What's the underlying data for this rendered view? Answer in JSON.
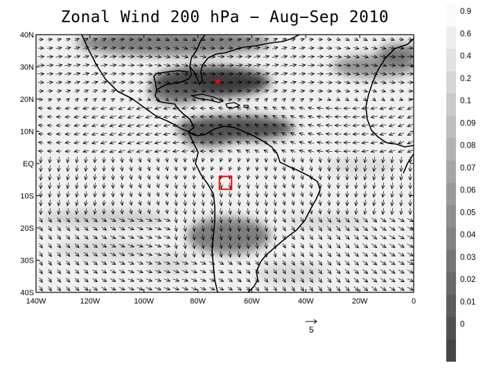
{
  "title": "Zonal Wind 200 hPa − Aug−Sep 2010",
  "map": {
    "lat_ticks": [
      "40N",
      "30N",
      "20N",
      "10N",
      "EQ",
      "10S",
      "20S",
      "30S",
      "40S"
    ],
    "lon_ticks": [
      "140W",
      "120W",
      "100W",
      "80W",
      "60W",
      "40W",
      "20W",
      "0"
    ],
    "lon_range": [
      -140,
      0
    ],
    "lat_range": [
      -40,
      40
    ],
    "star_marker": {
      "lon": -72.5,
      "lat": 25.5,
      "color": "#ff0000"
    },
    "box_marker": {
      "lon": [
        -72,
        -67.5
      ],
      "lat": [
        -8,
        -4
      ],
      "color": "#ff0000"
    },
    "reference_vector_label": "5"
  },
  "colorbar": {
    "labels": [
      "0.9",
      "0.6",
      "0.4",
      "0.2",
      "0.1",
      "0.09",
      "0.08",
      "0.07",
      "0.06",
      "0.05",
      "0.04",
      "0.03",
      "0.02",
      "0.01",
      "0"
    ]
  }
}
